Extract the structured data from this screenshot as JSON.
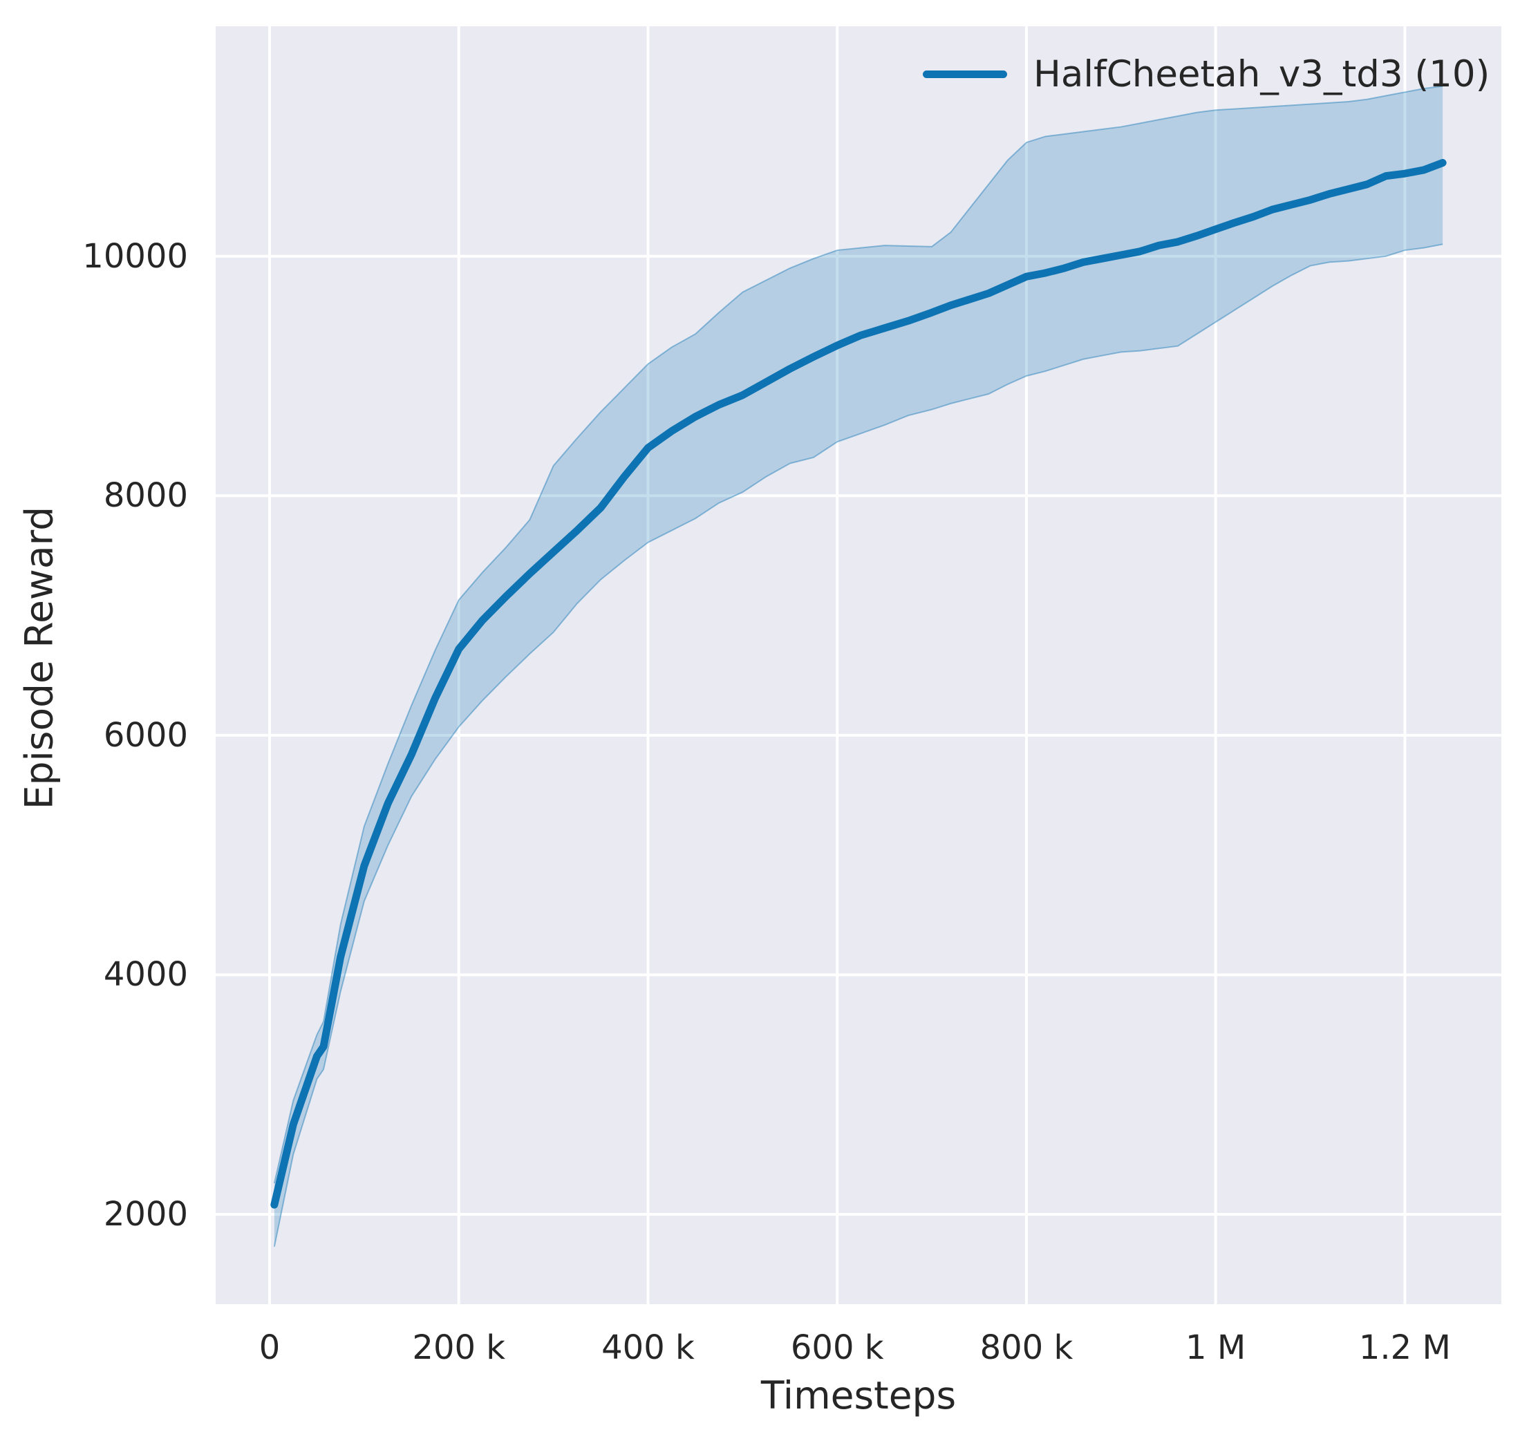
{
  "style": {
    "figure_bg": "#ffffff",
    "plot_bg": "#eaeaf2",
    "grid_color": "#ffffff",
    "text_color": "#262626",
    "line_color": "#0d73b3",
    "band_fill_alpha": 0.24,
    "band_edge_alpha": 0.42
  },
  "chart_data": {
    "type": "line",
    "title": "",
    "xlabel": "Timesteps",
    "ylabel": "Episode Reward",
    "grid": true,
    "legend": {
      "position": "upper right",
      "entries": [
        {
          "label": "HalfCheetah_v3_td3 (10)",
          "color": "#0d73b3"
        }
      ]
    },
    "xlim": [
      -57000,
      1302000
    ],
    "ylim": [
      1250,
      11920
    ],
    "x_ticks": [
      {
        "value": 0,
        "label": "0"
      },
      {
        "value": 200000,
        "label": "200 k"
      },
      {
        "value": 400000,
        "label": "400 k"
      },
      {
        "value": 600000,
        "label": "600 k"
      },
      {
        "value": 800000,
        "label": "800 k"
      },
      {
        "value": 1000000,
        "label": "1 M"
      },
      {
        "value": 1200000,
        "label": "1.2 M"
      }
    ],
    "y_ticks": [
      {
        "value": 2000,
        "label": "2000"
      },
      {
        "value": 4000,
        "label": "4000"
      },
      {
        "value": 6000,
        "label": "6000"
      },
      {
        "value": 8000,
        "label": "8000"
      },
      {
        "value": 10000,
        "label": "10000"
      }
    ],
    "series": [
      {
        "name": "HalfCheetah_v3_td3 (10)",
        "color": "#0d73b3",
        "x": [
          5000,
          25000,
          50000,
          57000,
          75000,
          100000,
          125000,
          150000,
          175000,
          200000,
          225000,
          250000,
          275000,
          300000,
          325000,
          350000,
          375000,
          400000,
          425000,
          450000,
          475000,
          500000,
          525000,
          550000,
          575000,
          600000,
          625000,
          650000,
          675000,
          700000,
          720000,
          740000,
          760000,
          780000,
          800000,
          820000,
          840000,
          860000,
          880000,
          900000,
          920000,
          940000,
          960000,
          980000,
          1000000,
          1020000,
          1040000,
          1060000,
          1080000,
          1100000,
          1120000,
          1140000,
          1160000,
          1180000,
          1200000,
          1220000,
          1240000
        ],
        "mean": [
          2080,
          2750,
          3320,
          3400,
          4150,
          4910,
          5430,
          5840,
          6310,
          6720,
          6960,
          7160,
          7350,
          7530,
          7710,
          7900,
          8160,
          8400,
          8540,
          8660,
          8760,
          8840,
          8950,
          9060,
          9160,
          9255,
          9340,
          9400,
          9460,
          9530,
          9590,
          9640,
          9690,
          9760,
          9830,
          9860,
          9900,
          9950,
          9980,
          10010,
          10040,
          10090,
          10120,
          10170,
          10225,
          10280,
          10330,
          10390,
          10430,
          10470,
          10520,
          10560,
          10600,
          10670,
          10690,
          10720,
          10780
        ],
        "lower": [
          1730,
          2500,
          3130,
          3210,
          3860,
          4615,
          5080,
          5490,
          5800,
          6070,
          6290,
          6490,
          6680,
          6860,
          7100,
          7300,
          7460,
          7610,
          7710,
          7810,
          7940,
          8030,
          8160,
          8270,
          8320,
          8450,
          8520,
          8590,
          8670,
          8720,
          8770,
          8810,
          8850,
          8930,
          9000,
          9040,
          9090,
          9140,
          9170,
          9200,
          9210,
          9230,
          9250,
          9350,
          9450,
          9550,
          9650,
          9750,
          9840,
          9920,
          9950,
          9960,
          9980,
          10000,
          10050,
          10070,
          10100
        ],
        "upper": [
          2260,
          2950,
          3500,
          3610,
          4420,
          5240,
          5760,
          6250,
          6710,
          7130,
          7360,
          7570,
          7800,
          8250,
          8480,
          8700,
          8900,
          9100,
          9240,
          9350,
          9530,
          9700,
          9800,
          9900,
          9980,
          10050,
          10070,
          10090,
          10085,
          10080,
          10200,
          10400,
          10600,
          10800,
          10950,
          11000,
          11020,
          11040,
          11060,
          11080,
          11110,
          11140,
          11170,
          11200,
          11220,
          11230,
          11240,
          11250,
          11260,
          11270,
          11280,
          11290,
          11310,
          11340,
          11370,
          11400,
          11420
        ]
      }
    ]
  }
}
